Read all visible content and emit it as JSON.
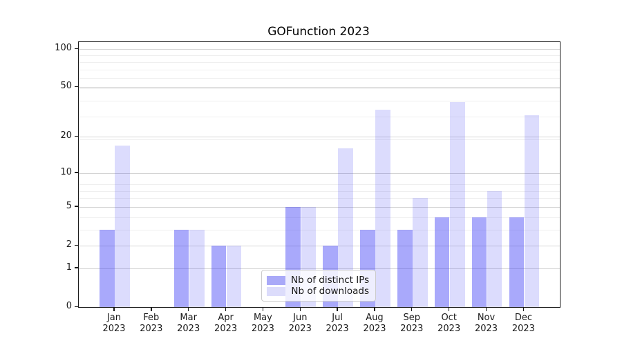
{
  "title": "GOFunction 2023",
  "chart_data": {
    "type": "bar",
    "title": "GOFunction 2023",
    "categories": [
      "Jan 2023",
      "Feb 2023",
      "Mar 2023",
      "Apr 2023",
      "May 2023",
      "Jun 2023",
      "Jul 2023",
      "Aug 2023",
      "Sep 2023",
      "Oct 2023",
      "Nov 2023",
      "Dec 2023"
    ],
    "series": [
      {
        "name": "Nb of distinct IPs",
        "color": "rgba(60,60,245,0.44)",
        "solid_color": "#a9a9f8",
        "values": [
          3,
          0,
          3,
          2,
          0,
          5,
          2,
          3,
          3,
          4,
          4,
          4
        ]
      },
      {
        "name": "Nb of downloads",
        "color": "rgba(60,60,245,0.18)",
        "solid_color": "#dcdcfb",
        "values": [
          17,
          0,
          3,
          2,
          0,
          5,
          16,
          33,
          6,
          38,
          7,
          30
        ]
      }
    ],
    "xlabel": "",
    "ylabel": "",
    "yscale": "log1p",
    "y_ticks": [
      0,
      1,
      2,
      5,
      10,
      20,
      50,
      100
    ],
    "ylim": [
      0,
      110
    ],
    "grid": "both",
    "legend_position": "lower center",
    "colors": {
      "spine": "#1a1a1a",
      "grid_major": "#d4d4d4",
      "grid_minor": "#efefef",
      "background": "#ffffff"
    }
  }
}
